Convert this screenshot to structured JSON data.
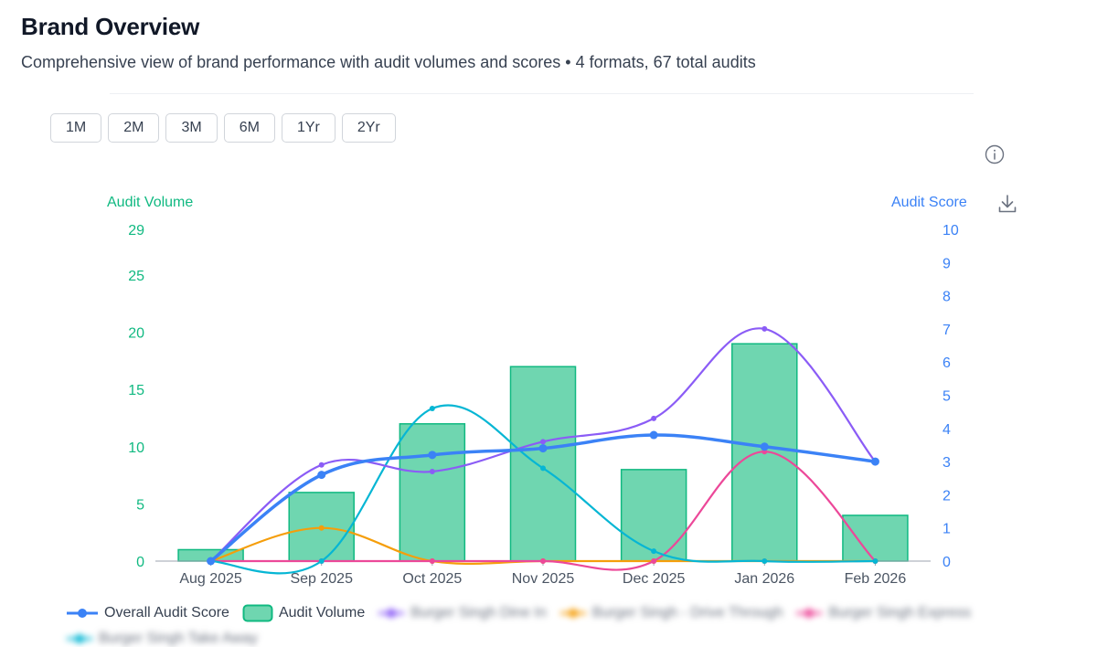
{
  "header": {
    "title": "Brand Overview",
    "subtitle": "Comprehensive view of brand performance with audit volumes and scores • 4 formats, 67 total audits"
  },
  "range_buttons": [
    "1M",
    "2M",
    "3M",
    "6M",
    "1Yr",
    "2Yr"
  ],
  "colors": {
    "volume_bar": "#6fd6b0",
    "volume_bar_border": "#10b981",
    "overall_score": "#3b82f6",
    "dine_in": "#8b5cf6",
    "drive_through": "#f59e0b",
    "express": "#ec4899",
    "take_away": "#06b6d4",
    "left_axis": "#10b981",
    "right_axis": "#3b82f6"
  },
  "chart_data": {
    "type": "bar",
    "categories": [
      "Aug 2025",
      "Sep 2025",
      "Oct 2025",
      "Nov 2025",
      "Dec 2025",
      "Jan 2026",
      "Feb 2026"
    ],
    "left_axis": {
      "label": "Audit Volume",
      "ylim": [
        0,
        29
      ],
      "ticks": [
        0,
        5,
        10,
        15,
        20,
        25,
        29
      ]
    },
    "right_axis": {
      "label": "Audit Score",
      "ylim": [
        0,
        10
      ],
      "ticks": [
        0,
        1,
        2,
        3,
        4,
        5,
        6,
        7,
        8,
        9,
        10
      ]
    },
    "series": [
      {
        "name": "Audit Volume",
        "kind": "bar",
        "axis": "left",
        "values": [
          1,
          6,
          12,
          17,
          8,
          19,
          4
        ]
      },
      {
        "name": "Overall Audit Score",
        "kind": "line",
        "axis": "right",
        "values": [
          0,
          2.6,
          3.2,
          3.4,
          3.8,
          3.45,
          3.0
        ]
      },
      {
        "name": "Burger Singh Dine In",
        "kind": "line",
        "axis": "right",
        "values": [
          0,
          2.9,
          2.7,
          3.6,
          4.3,
          7.0,
          3.0
        ]
      },
      {
        "name": "Burger Singh - Drive Through",
        "kind": "line",
        "axis": "right",
        "values": [
          0,
          1.0,
          0,
          0,
          0,
          0,
          0
        ]
      },
      {
        "name": "Burger Singh Express",
        "kind": "line",
        "axis": "right",
        "values": [
          0,
          0,
          0,
          0,
          0,
          3.3,
          0
        ]
      },
      {
        "name": "Burger Singh Take Away",
        "kind": "line",
        "axis": "right",
        "values": [
          0,
          0,
          4.6,
          2.8,
          0.3,
          0,
          0
        ]
      }
    ],
    "legend_position": "bottom",
    "grid": false
  },
  "legend": {
    "overall": "Overall Audit Score",
    "volume": "Audit Volume",
    "dine_in": "Burger Singh Dine In",
    "drive_through": "Burger Singh - Drive Through",
    "express": "Burger Singh Express",
    "take_away": "Burger Singh Take Away"
  },
  "icons": {
    "info": "info-icon",
    "download": "download-icon"
  }
}
